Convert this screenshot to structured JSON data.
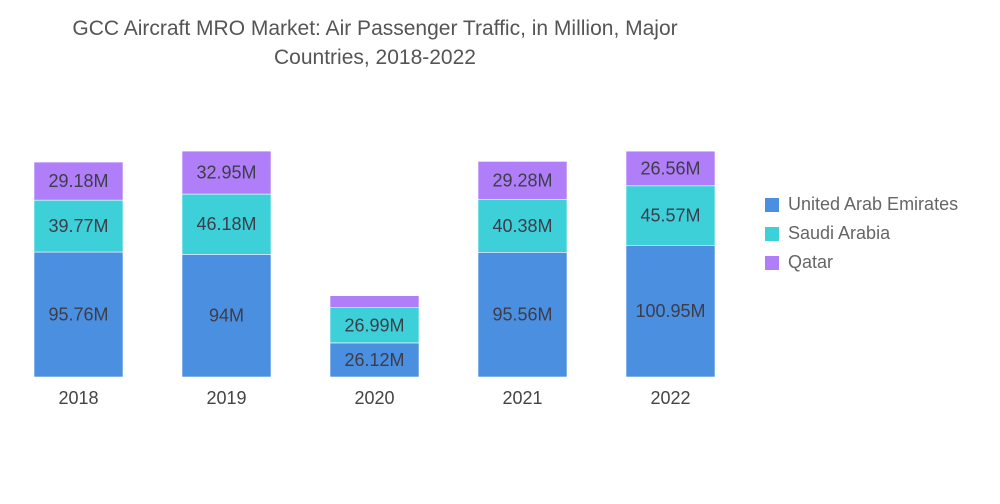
{
  "chart_data": {
    "type": "bar",
    "stacked": true,
    "title": "GCC Aircraft MRO Market: Air Passenger Traffic, in Million, Major Countries, 2018-2022",
    "title_lines": [
      "GCC Aircraft MRO Market: Air Passenger Traffic, in Million, Major",
      "Countries, 2018-2022"
    ],
    "xlabel": "",
    "ylabel": "",
    "categories": [
      "2018",
      "2019",
      "2020",
      "2021",
      "2022"
    ],
    "series": [
      {
        "name": "United Arab Emirates",
        "color": "#4a8fe0",
        "values": [
          95.76,
          94,
          26.12,
          95.56,
          100.95
        ],
        "labels": [
          "95.76M",
          "94M",
          "26.12M",
          "95.56M",
          "100.95M"
        ]
      },
      {
        "name": "Saudi Arabia",
        "color": "#3dd0d8",
        "values": [
          39.77,
          46.18,
          26.99,
          40.38,
          45.57
        ],
        "labels": [
          "39.77M",
          "46.18M",
          "26.99M",
          "40.38M",
          "45.57M"
        ]
      },
      {
        "name": "Qatar",
        "color": "#b07ef8",
        "values": [
          29.18,
          32.95,
          9.2,
          29.28,
          26.56
        ],
        "labels": [
          "29.18M",
          "32.95M",
          "",
          "29.28M",
          "26.56M"
        ]
      }
    ],
    "value_suffix": "M",
    "grid": false,
    "y_axis_visible": false,
    "legend_position": "right"
  }
}
